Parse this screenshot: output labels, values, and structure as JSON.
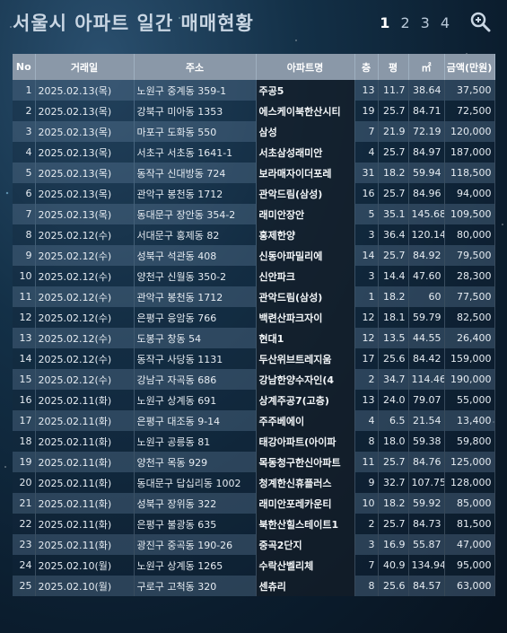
{
  "title": "서울시 아파트 일간 매매현황",
  "pagination": {
    "pages": [
      "1",
      "2",
      "3",
      "4"
    ],
    "active": "1",
    "zoom_icon": "search-icon"
  },
  "columns": [
    "No",
    "거래일",
    "주소",
    "아파트명",
    "층",
    "평",
    "㎡",
    "금액(만원)"
  ],
  "rows": [
    [
      "1",
      "2025.02.13(목)",
      "노원구 중계동 359-1",
      "주공5",
      "13",
      "11.7",
      "38.64",
      "37,500"
    ],
    [
      "2",
      "2025.02.13(목)",
      "강북구 미아동 1353",
      "에스케이북한산시티",
      "19",
      "25.7",
      "84.71",
      "72,500"
    ],
    [
      "3",
      "2025.02.13(목)",
      "마포구 도화동 550",
      "삼성",
      "7",
      "21.9",
      "72.19",
      "120,000"
    ],
    [
      "4",
      "2025.02.13(목)",
      "서초구 서초동 1641-1",
      "서초삼성래미안",
      "4",
      "25.7",
      "84.97",
      "187,000"
    ],
    [
      "5",
      "2025.02.13(목)",
      "동작구 신대방동 724",
      "보라매자이더포레",
      "31",
      "18.2",
      "59.94",
      "118,500"
    ],
    [
      "6",
      "2025.02.13(목)",
      "관악구 봉천동 1712",
      "관악드림(삼성)",
      "16",
      "25.7",
      "84.96",
      "94,000"
    ],
    [
      "7",
      "2025.02.13(목)",
      "동대문구 장안동 354-2",
      "래미안장안",
      "5",
      "35.1",
      "145.68",
      "109,500"
    ],
    [
      "8",
      "2025.02.12(수)",
      "서대문구 홍제동 82",
      "홍제한양",
      "3",
      "36.4",
      "120.14",
      "80,000"
    ],
    [
      "9",
      "2025.02.12(수)",
      "성북구 석관동 408",
      "신동아파밀리에",
      "14",
      "25.7",
      "84.92",
      "79,500"
    ],
    [
      "10",
      "2025.02.12(수)",
      "양천구 신월동 350-2",
      "신안파크",
      "3",
      "14.4",
      "47.60",
      "28,300"
    ],
    [
      "11",
      "2025.02.12(수)",
      "관악구 봉천동 1712",
      "관악드림(삼성)",
      "1",
      "18.2",
      "60",
      "77,500"
    ],
    [
      "12",
      "2025.02.12(수)",
      "은평구 응암동 766",
      "백련산파크자이",
      "12",
      "18.1",
      "59.79",
      "82,500"
    ],
    [
      "13",
      "2025.02.12(수)",
      "도봉구 창동 54",
      "현대1",
      "12",
      "13.5",
      "44.55",
      "26,400"
    ],
    [
      "14",
      "2025.02.12(수)",
      "동작구 사당동 1131",
      "두산위브트레지움",
      "17",
      "25.6",
      "84.42",
      "159,000"
    ],
    [
      "15",
      "2025.02.12(수)",
      "강남구 자곡동 686",
      "강남한양수자인(4",
      "2",
      "34.7",
      "114.46",
      "190,000"
    ],
    [
      "16",
      "2025.02.11(화)",
      "노원구 상계동 691",
      "상계주공7(고층)",
      "13",
      "24.0",
      "79.07",
      "55,000"
    ],
    [
      "17",
      "2025.02.11(화)",
      "은평구 대조동 9-14",
      "주주베에이",
      "4",
      "6.5",
      "21.54",
      "13,400"
    ],
    [
      "18",
      "2025.02.11(화)",
      "노원구 공릉동 81",
      "태강아파트(아이파",
      "8",
      "18.0",
      "59.38",
      "59,800"
    ],
    [
      "19",
      "2025.02.11(화)",
      "양천구 목동 929",
      "목동청구한신아파트",
      "11",
      "25.7",
      "84.76",
      "125,000"
    ],
    [
      "20",
      "2025.02.11(화)",
      "동대문구 답십리동 1002",
      "청계한신휴플러스",
      "9",
      "32.7",
      "107.75",
      "128,000"
    ],
    [
      "21",
      "2025.02.11(화)",
      "성북구 장위동 322",
      "래미안포레카운티",
      "10",
      "18.2",
      "59.92",
      "85,000"
    ],
    [
      "22",
      "2025.02.11(화)",
      "은평구 불광동 635",
      "북한산힐스테이트1",
      "2",
      "25.7",
      "84.73",
      "81,500"
    ],
    [
      "23",
      "2025.02.11(화)",
      "광진구 중곡동 190-26",
      "중곡2단지",
      "3",
      "16.9",
      "55.87",
      "47,000"
    ],
    [
      "24",
      "2025.02.10(월)",
      "노원구 상계동 1265",
      "수락산벨리체",
      "7",
      "40.9",
      "134.94",
      "95,000"
    ],
    [
      "25",
      "2025.02.10(월)",
      "구로구 고척동 320",
      "센츄리",
      "8",
      "25.6",
      "84.57",
      "63,000"
    ]
  ]
}
